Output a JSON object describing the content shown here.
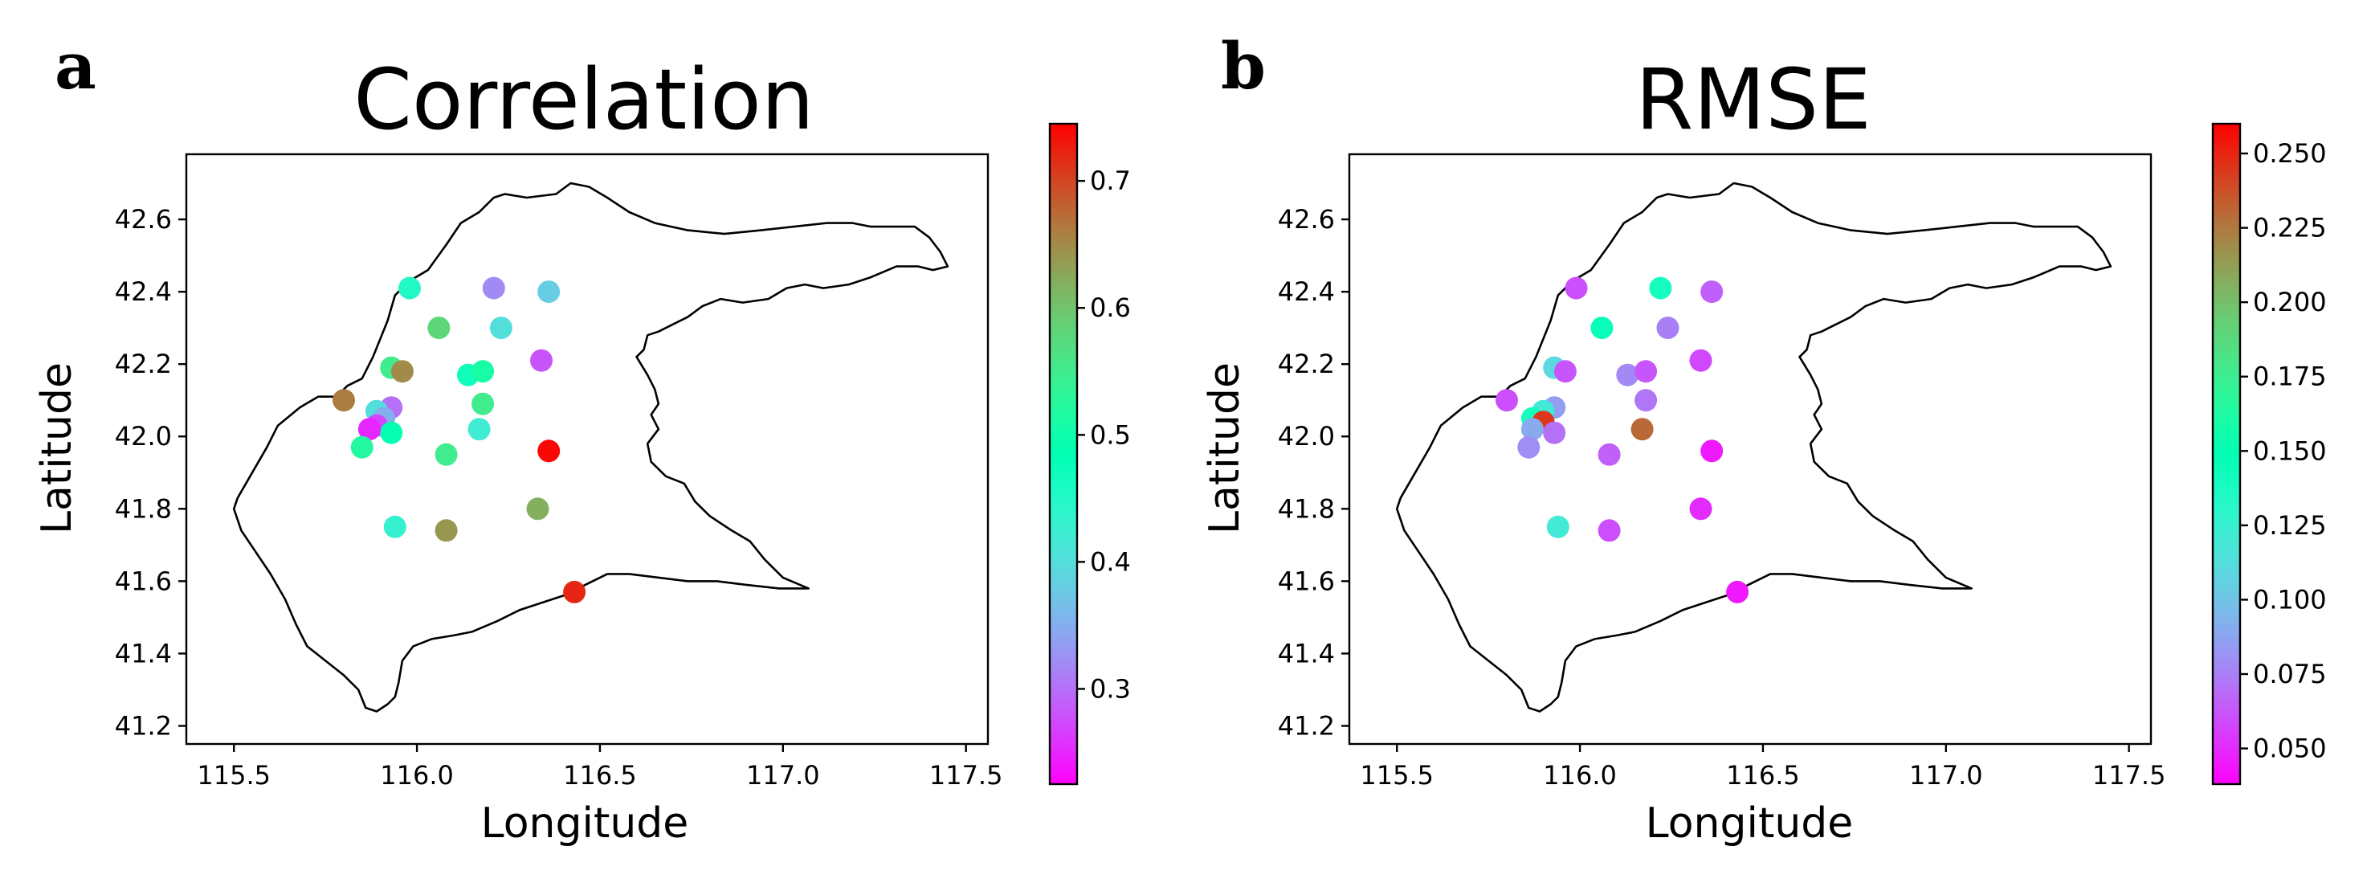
{
  "figure": {
    "background": "#ffffff",
    "colormap": "rainbow"
  },
  "chart_data": [
    {
      "type": "scatter",
      "panel_label": "a",
      "title": "Correlation",
      "xlabel": "Longitude",
      "ylabel": "Latitude",
      "xlim": [
        115.37,
        117.56
      ],
      "ylim": [
        41.15,
        42.78
      ],
      "xticks": [
        115.5,
        116.0,
        116.5,
        117.0,
        117.5
      ],
      "xtick_labels": [
        "115.5",
        "116.0",
        "116.5",
        "117.0",
        "117.5"
      ],
      "yticks": [
        41.2,
        41.4,
        41.6,
        41.8,
        42.0,
        42.2,
        42.4,
        42.6
      ],
      "ytick_labels": [
        "41.2",
        "41.4",
        "41.6",
        "41.8",
        "42.0",
        "42.2",
        "42.4",
        "42.6"
      ],
      "grid": false,
      "colorbar": {
        "vmin": 0.225,
        "vmax": 0.745,
        "ticks": [
          0.3,
          0.4,
          0.5,
          0.6,
          0.7
        ],
        "tick_labels": [
          "0.3",
          "0.4",
          "0.5",
          "0.6",
          "0.7"
        ]
      },
      "points": [
        {
          "lon": 115.98,
          "lat": 42.41,
          "value": 0.45
        },
        {
          "lon": 116.21,
          "lat": 42.41,
          "value": 0.32
        },
        {
          "lon": 116.36,
          "lat": 42.4,
          "value": 0.38
        },
        {
          "lon": 116.06,
          "lat": 42.3,
          "value": 0.58
        },
        {
          "lon": 116.23,
          "lat": 42.3,
          "value": 0.4
        },
        {
          "lon": 116.34,
          "lat": 42.21,
          "value": 0.28
        },
        {
          "lon": 115.93,
          "lat": 42.19,
          "value": 0.55
        },
        {
          "lon": 115.96,
          "lat": 42.18,
          "value": 0.65
        },
        {
          "lon": 116.14,
          "lat": 42.17,
          "value": 0.47
        },
        {
          "lon": 116.18,
          "lat": 42.18,
          "value": 0.51
        },
        {
          "lon": 115.8,
          "lat": 42.1,
          "value": 0.66
        },
        {
          "lon": 116.18,
          "lat": 42.09,
          "value": 0.55
        },
        {
          "lon": 115.93,
          "lat": 42.08,
          "value": 0.3
        },
        {
          "lon": 115.89,
          "lat": 42.07,
          "value": 0.4
        },
        {
          "lon": 115.91,
          "lat": 42.05,
          "value": 0.35
        },
        {
          "lon": 115.89,
          "lat": 42.03,
          "value": 0.27
        },
        {
          "lon": 116.17,
          "lat": 42.02,
          "value": 0.42
        },
        {
          "lon": 115.93,
          "lat": 42.01,
          "value": 0.49
        },
        {
          "lon": 115.87,
          "lat": 42.02,
          "value": 0.25
        },
        {
          "lon": 115.85,
          "lat": 41.97,
          "value": 0.52
        },
        {
          "lon": 116.08,
          "lat": 41.95,
          "value": 0.55
        },
        {
          "lon": 116.36,
          "lat": 41.96,
          "value": 0.74
        },
        {
          "lon": 116.33,
          "lat": 41.8,
          "value": 0.62
        },
        {
          "lon": 115.94,
          "lat": 41.75,
          "value": 0.43
        },
        {
          "lon": 116.08,
          "lat": 41.74,
          "value": 0.64
        },
        {
          "lon": 116.43,
          "lat": 41.57,
          "value": 0.72
        }
      ]
    },
    {
      "type": "scatter",
      "panel_label": "b",
      "title": "RMSE",
      "xlabel": "Longitude",
      "ylabel": "Latitude",
      "xlim": [
        115.37,
        117.56
      ],
      "ylim": [
        41.15,
        42.78
      ],
      "xticks": [
        115.5,
        116.0,
        116.5,
        117.0,
        117.5
      ],
      "xtick_labels": [
        "115.5",
        "116.0",
        "116.5",
        "117.0",
        "117.5"
      ],
      "yticks": [
        41.2,
        41.4,
        41.6,
        41.8,
        42.0,
        42.2,
        42.4,
        42.6
      ],
      "ytick_labels": [
        "41.2",
        "41.4",
        "41.6",
        "41.8",
        "42.0",
        "42.2",
        "42.4",
        "42.6"
      ],
      "grid": false,
      "colorbar": {
        "vmin": 0.038,
        "vmax": 0.26,
        "ticks": [
          0.05,
          0.075,
          0.1,
          0.125,
          0.15,
          0.175,
          0.2,
          0.225,
          0.25
        ],
        "tick_labels": [
          "0.050",
          "0.075",
          "0.100",
          "0.125",
          "0.150",
          "0.175",
          "0.200",
          "0.225",
          "0.250"
        ]
      },
      "points": [
        {
          "lon": 115.99,
          "lat": 42.41,
          "value": 0.06
        },
        {
          "lon": 116.22,
          "lat": 42.41,
          "value": 0.14
        },
        {
          "lon": 116.36,
          "lat": 42.4,
          "value": 0.065
        },
        {
          "lon": 116.06,
          "lat": 42.3,
          "value": 0.145
        },
        {
          "lon": 116.24,
          "lat": 42.3,
          "value": 0.075
        },
        {
          "lon": 116.33,
          "lat": 42.21,
          "value": 0.058
        },
        {
          "lon": 115.93,
          "lat": 42.19,
          "value": 0.11
        },
        {
          "lon": 115.96,
          "lat": 42.18,
          "value": 0.062
        },
        {
          "lon": 116.13,
          "lat": 42.17,
          "value": 0.078
        },
        {
          "lon": 116.18,
          "lat": 42.18,
          "value": 0.062
        },
        {
          "lon": 115.8,
          "lat": 42.1,
          "value": 0.06
        },
        {
          "lon": 116.18,
          "lat": 42.1,
          "value": 0.072
        },
        {
          "lon": 115.93,
          "lat": 42.08,
          "value": 0.085
        },
        {
          "lon": 115.9,
          "lat": 42.07,
          "value": 0.12
        },
        {
          "lon": 115.87,
          "lat": 42.05,
          "value": 0.14
        },
        {
          "lon": 115.9,
          "lat": 42.04,
          "value": 0.245
        },
        {
          "lon": 116.17,
          "lat": 42.02,
          "value": 0.23
        },
        {
          "lon": 115.93,
          "lat": 42.01,
          "value": 0.07
        },
        {
          "lon": 115.87,
          "lat": 42.02,
          "value": 0.09
        },
        {
          "lon": 115.86,
          "lat": 41.97,
          "value": 0.08
        },
        {
          "lon": 116.08,
          "lat": 41.95,
          "value": 0.065
        },
        {
          "lon": 116.36,
          "lat": 41.96,
          "value": 0.045
        },
        {
          "lon": 116.33,
          "lat": 41.8,
          "value": 0.05
        },
        {
          "lon": 115.94,
          "lat": 41.75,
          "value": 0.12
        },
        {
          "lon": 116.08,
          "lat": 41.74,
          "value": 0.06
        },
        {
          "lon": 116.43,
          "lat": 41.57,
          "value": 0.045
        }
      ]
    }
  ],
  "region_outline_lonlat": [
    [
      115.51,
      41.83
    ],
    [
      115.55,
      41.9
    ],
    [
      115.59,
      41.97
    ],
    [
      115.62,
      42.03
    ],
    [
      115.68,
      42.08
    ],
    [
      115.73,
      42.11
    ],
    [
      115.78,
      42.11
    ],
    [
      115.81,
      42.14
    ],
    [
      115.85,
      42.16
    ],
    [
      115.88,
      42.22
    ],
    [
      115.92,
      42.32
    ],
    [
      115.94,
      42.39
    ],
    [
      115.98,
      42.43
    ],
    [
      116.03,
      42.46
    ],
    [
      116.08,
      42.53
    ],
    [
      116.12,
      42.59
    ],
    [
      116.17,
      42.62
    ],
    [
      116.21,
      42.66
    ],
    [
      116.24,
      42.67
    ],
    [
      116.3,
      42.66
    ],
    [
      116.38,
      42.67
    ],
    [
      116.42,
      42.7
    ],
    [
      116.47,
      42.69
    ],
    [
      116.52,
      42.66
    ],
    [
      116.58,
      42.62
    ],
    [
      116.65,
      42.59
    ],
    [
      116.74,
      42.57
    ],
    [
      116.84,
      42.56
    ],
    [
      116.94,
      42.57
    ],
    [
      117.03,
      42.58
    ],
    [
      117.12,
      42.59
    ],
    [
      117.19,
      42.59
    ],
    [
      117.24,
      42.58
    ],
    [
      117.31,
      42.58
    ],
    [
      117.36,
      42.58
    ],
    [
      117.4,
      42.55
    ],
    [
      117.43,
      42.51
    ],
    [
      117.45,
      42.47
    ],
    [
      117.41,
      42.46
    ],
    [
      117.37,
      42.47
    ],
    [
      117.31,
      42.47
    ],
    [
      117.24,
      42.44
    ],
    [
      117.18,
      42.42
    ],
    [
      117.11,
      42.41
    ],
    [
      117.06,
      42.42
    ],
    [
      117.01,
      42.41
    ],
    [
      116.96,
      42.38
    ],
    [
      116.89,
      42.37
    ],
    [
      116.83,
      42.38
    ],
    [
      116.78,
      42.36
    ],
    [
      116.74,
      42.33
    ],
    [
      116.7,
      42.31
    ],
    [
      116.66,
      42.29
    ],
    [
      116.63,
      42.28
    ],
    [
      116.62,
      42.24
    ],
    [
      116.6,
      42.22
    ],
    [
      116.63,
      42.17
    ],
    [
      116.65,
      42.13
    ],
    [
      116.66,
      42.09
    ],
    [
      116.64,
      42.06
    ],
    [
      116.66,
      42.02
    ],
    [
      116.63,
      41.98
    ],
    [
      116.64,
      41.93
    ],
    [
      116.68,
      41.89
    ],
    [
      116.73,
      41.87
    ],
    [
      116.76,
      41.82
    ],
    [
      116.8,
      41.78
    ],
    [
      116.86,
      41.74
    ],
    [
      116.91,
      41.71
    ],
    [
      116.95,
      41.66
    ],
    [
      117.0,
      41.61
    ],
    [
      117.07,
      41.58
    ],
    [
      116.99,
      41.58
    ],
    [
      116.9,
      41.59
    ],
    [
      116.82,
      41.6
    ],
    [
      116.74,
      41.6
    ],
    [
      116.66,
      41.61
    ],
    [
      116.58,
      41.62
    ],
    [
      116.52,
      41.62
    ],
    [
      116.46,
      41.59
    ],
    [
      116.4,
      41.56
    ],
    [
      116.34,
      41.54
    ],
    [
      116.28,
      41.52
    ],
    [
      116.22,
      41.49
    ],
    [
      116.15,
      41.46
    ],
    [
      116.1,
      41.45
    ],
    [
      116.04,
      41.44
    ],
    [
      115.99,
      41.42
    ],
    [
      115.96,
      41.38
    ],
    [
      115.95,
      41.32
    ],
    [
      115.94,
      41.28
    ],
    [
      115.92,
      41.26
    ],
    [
      115.89,
      41.24
    ],
    [
      115.86,
      41.25
    ],
    [
      115.84,
      41.3
    ],
    [
      115.8,
      41.34
    ],
    [
      115.75,
      41.38
    ],
    [
      115.7,
      41.42
    ],
    [
      115.67,
      41.48
    ],
    [
      115.64,
      41.55
    ],
    [
      115.6,
      41.62
    ],
    [
      115.56,
      41.68
    ],
    [
      115.52,
      41.74
    ],
    [
      115.5,
      41.8
    ],
    [
      115.51,
      41.83
    ]
  ]
}
